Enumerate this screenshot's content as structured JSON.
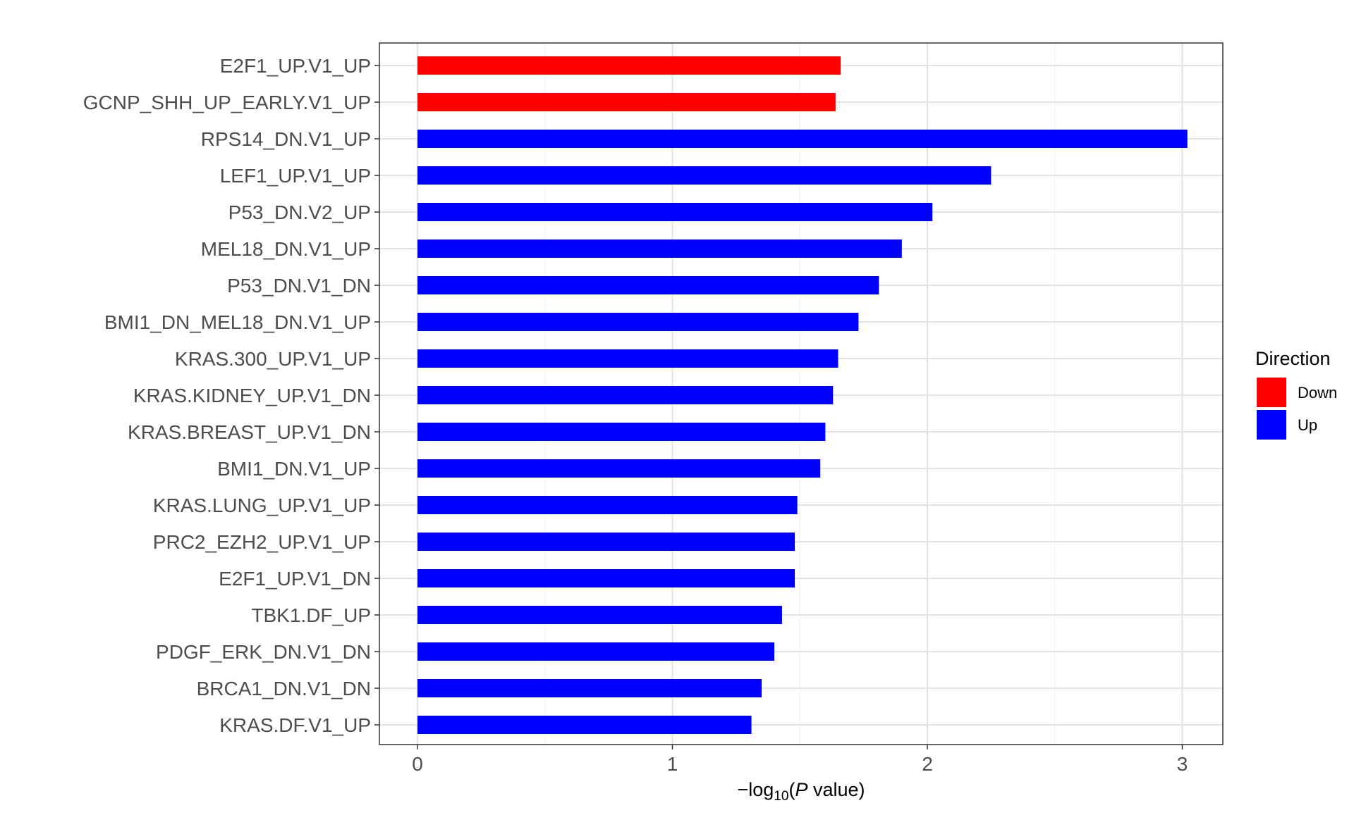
{
  "chart_data": {
    "type": "bar",
    "orientation": "horizontal",
    "categories": [
      "E2F1_UP.V1_UP",
      "GCNP_SHH_UP_EARLY.V1_UP",
      "RPS14_DN.V1_UP",
      "LEF1_UP.V1_UP",
      "P53_DN.V2_UP",
      "MEL18_DN.V1_UP",
      "P53_DN.V1_DN",
      "BMI1_DN_MEL18_DN.V1_UP",
      "KRAS.300_UP.V1_UP",
      "KRAS.KIDNEY_UP.V1_DN",
      "KRAS.BREAST_UP.V1_DN",
      "BMI1_DN.V1_UP",
      "KRAS.LUNG_UP.V1_UP",
      "PRC2_EZH2_UP.V1_UP",
      "E2F1_UP.V1_DN",
      "TBK1.DF_UP",
      "PDGF_ERK_DN.V1_DN",
      "BRCA1_DN.V1_DN",
      "KRAS.DF.V1_UP"
    ],
    "values": [
      1.66,
      1.64,
      3.02,
      2.25,
      2.02,
      1.9,
      1.81,
      1.73,
      1.65,
      1.63,
      1.6,
      1.58,
      1.49,
      1.48,
      1.48,
      1.43,
      1.4,
      1.35,
      1.31
    ],
    "direction": [
      "Down",
      "Down",
      "Up",
      "Up",
      "Up",
      "Up",
      "Up",
      "Up",
      "Up",
      "Up",
      "Up",
      "Up",
      "Up",
      "Up",
      "Up",
      "Up",
      "Up",
      "Up",
      "Up"
    ],
    "xlabel": {
      "prefix": "−log",
      "subscript": "10",
      "open": "(",
      "italic": "P",
      "rest": " value)"
    },
    "ylabel": "",
    "title": "",
    "xlim": [
      -0.15,
      3.17
    ],
    "xticks": [
      0,
      1,
      2,
      3
    ],
    "grid": true,
    "legend": {
      "title": "Direction",
      "position": "right",
      "entries": [
        {
          "label": "Down",
          "color": "#ff0000"
        },
        {
          "label": "Up",
          "color": "#0000ff"
        }
      ]
    },
    "colors": {
      "Down": "#ff0000",
      "Up": "#0000ff"
    }
  }
}
